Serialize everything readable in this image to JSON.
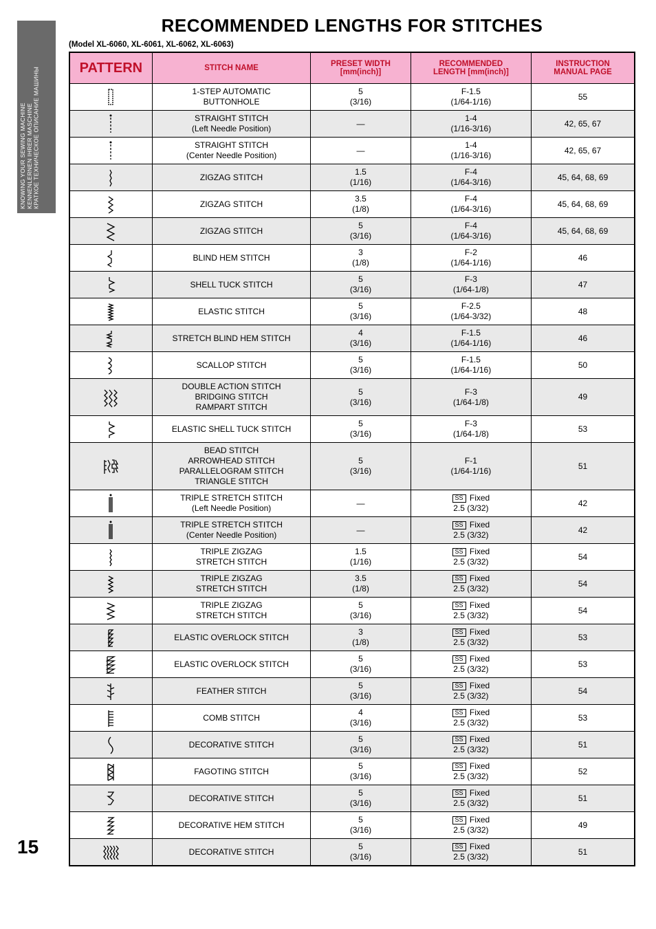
{
  "sideTab": "KNOWING YOUR SEWING MACHINE\nKENNENLERNEN IHRER MASCHINE\nКРАТКОЕ ТЕХНИЧЕСКОЕ ОПИСАНИЕ МАШИНЫ",
  "title": "RECOMMENDED LENGTHS FOR STITCHES",
  "subtitle": "(Model XL-6060, XL-6061, XL-6062, XL-6063)",
  "headers": {
    "pattern": "PATTERN",
    "name": "STITCH NAME",
    "width": "PRESET WIDTH\n[mm(inch)]",
    "length": "RECOMMENDED\nLENGTH [mm(inch)]",
    "page": "INSTRUCTION\nMANUAL PAGE"
  },
  "ssLabel": "SS",
  "fixedLabel": "Fixed",
  "rows": [
    {
      "shaded": false,
      "svg": "buttonhole",
      "name": "1-STEP AUTOMATIC\nBUTTONHOLE",
      "width": "5\n(3/16)",
      "length": "F-1.5\n(1/64-1/16)",
      "page": "55"
    },
    {
      "shaded": true,
      "svg": "straight-left",
      "name": "STRAIGHT STITCH\n(Left Needle Position)",
      "width": "—",
      "length": "1-4\n(1/16-3/16)",
      "page": "42, 65, 67"
    },
    {
      "shaded": false,
      "svg": "straight-center",
      "name": "STRAIGHT STITCH\n(Center Needle Position)",
      "width": "—",
      "length": "1-4\n(1/16-3/16)",
      "page": "42, 65, 67"
    },
    {
      "shaded": true,
      "svg": "zigzag1",
      "name": "ZIGZAG STITCH",
      "width": "1.5\n(1/16)",
      "length": "F-4\n(1/64-3/16)",
      "page": "45, 64, 68, 69"
    },
    {
      "shaded": false,
      "svg": "zigzag2",
      "name": "ZIGZAG STITCH",
      "width": "3.5\n(1/8)",
      "length": "F-4\n(1/64-3/16)",
      "page": "45, 64, 68, 69"
    },
    {
      "shaded": true,
      "svg": "zigzag3",
      "name": "ZIGZAG STITCH",
      "width": "5\n(3/16)",
      "length": "F-4\n(1/64-3/16)",
      "page": "45, 64, 68, 69"
    },
    {
      "shaded": false,
      "svg": "blindhem",
      "name": "BLIND HEM STITCH",
      "width": "3\n(1/8)",
      "length": "F-2\n(1/64-1/16)",
      "page": "46"
    },
    {
      "shaded": true,
      "svg": "shelltuck",
      "name": "SHELL TUCK STITCH",
      "width": "5\n(3/16)",
      "length": "F-3\n(1/64-1/8)",
      "page": "47"
    },
    {
      "shaded": false,
      "svg": "elastic",
      "name": "ELASTIC STITCH",
      "width": "5\n(3/16)",
      "length": "F-2.5\n(1/64-3/32)",
      "page": "48"
    },
    {
      "shaded": true,
      "svg": "stretchblind",
      "name": "STRETCH BLIND HEM STITCH",
      "width": "4\n(3/16)",
      "length": "F-1.5\n(1/64-1/16)",
      "page": "46"
    },
    {
      "shaded": false,
      "svg": "scallop",
      "name": "SCALLOP STITCH",
      "width": "5\n(3/16)",
      "length": "F-1.5\n(1/64-1/16)",
      "page": "50"
    },
    {
      "shaded": true,
      "svg": "double-action",
      "name": "DOUBLE ACTION STITCH\nBRIDGING STITCH\nRAMPART STITCH",
      "width": "5\n(3/16)",
      "length": "F-3\n(1/64-1/8)",
      "page": "49"
    },
    {
      "shaded": false,
      "svg": "elastic-shell",
      "name": "ELASTIC SHELL TUCK STITCH",
      "width": "5\n(3/16)",
      "length": "F-3\n(1/64-1/8)",
      "page": "53"
    },
    {
      "shaded": true,
      "svg": "bead",
      "name": "BEAD STITCH\nARROWHEAD STITCH\nPARALLELOGRAM STITCH\nTRIANGLE STITCH",
      "width": "5\n(3/16)",
      "length": "F-1\n(1/64-1/16)",
      "page": "51"
    },
    {
      "shaded": false,
      "svg": "triple-left",
      "name": "TRIPLE STRETCH STITCH\n(Left Needle Position)",
      "width": "—",
      "length_ss": true,
      "length": "2.5 (3/32)",
      "page": "42"
    },
    {
      "shaded": true,
      "svg": "triple-center",
      "name": "TRIPLE STRETCH STITCH\n(Center Needle Position)",
      "width": "—",
      "length_ss": true,
      "length": "2.5 (3/32)",
      "page": "42"
    },
    {
      "shaded": false,
      "svg": "tz1",
      "name": "TRIPLE ZIGZAG\nSTRETCH STITCH",
      "width": "1.5\n(1/16)",
      "length_ss": true,
      "length": "2.5 (3/32)",
      "page": "54"
    },
    {
      "shaded": true,
      "svg": "tz2",
      "name": "TRIPLE ZIGZAG\nSTRETCH STITCH",
      "width": "3.5\n(1/8)",
      "length_ss": true,
      "length": "2.5 (3/32)",
      "page": "54"
    },
    {
      "shaded": false,
      "svg": "tz3",
      "name": "TRIPLE ZIGZAG\nSTRETCH STITCH",
      "width": "5\n(3/16)",
      "length_ss": true,
      "length": "2.5 (3/32)",
      "page": "54"
    },
    {
      "shaded": true,
      "svg": "overlock1",
      "name": "ELASTIC OVERLOCK STITCH",
      "width": "3\n(1/8)",
      "length_ss": true,
      "length": "2.5 (3/32)",
      "page": "53"
    },
    {
      "shaded": false,
      "svg": "overlock2",
      "name": "ELASTIC OVERLOCK STITCH",
      "width": "5\n(3/16)",
      "length_ss": true,
      "length": "2.5 (3/32)",
      "page": "53"
    },
    {
      "shaded": true,
      "svg": "feather",
      "name": "FEATHER STITCH",
      "width": "5\n(3/16)",
      "length_ss": true,
      "length": "2.5 (3/32)",
      "page": "54"
    },
    {
      "shaded": false,
      "svg": "comb",
      "name": "COMB STITCH",
      "width": "4\n(3/16)",
      "length_ss": true,
      "length": "2.5 (3/32)",
      "page": "53"
    },
    {
      "shaded": true,
      "svg": "decorative1",
      "name": "DECORATIVE STITCH",
      "width": "5\n(3/16)",
      "length_ss": true,
      "length": "2.5 (3/32)",
      "page": "51"
    },
    {
      "shaded": false,
      "svg": "fagoting",
      "name": "FAGOTING STITCH",
      "width": "5\n(3/16)",
      "length_ss": true,
      "length": "2.5 (3/32)",
      "page": "52"
    },
    {
      "shaded": true,
      "svg": "decorative2",
      "name": "DECORATIVE STITCH",
      "width": "5\n(3/16)",
      "length_ss": true,
      "length": "2.5 (3/32)",
      "page": "51"
    },
    {
      "shaded": false,
      "svg": "dec-hem",
      "name": "DECORATIVE HEM STITCH",
      "width": "5\n(3/16)",
      "length_ss": true,
      "length": "2.5 (3/32)",
      "page": "49"
    },
    {
      "shaded": true,
      "svg": "decorative3",
      "name": "DECORATIVE STITCH",
      "width": "5\n(3/16)",
      "length_ss": true,
      "length": "2.5 (3/32)",
      "page": "51"
    }
  ],
  "pageNumber": "15",
  "colors": {
    "headerBg": "#f7b2d1",
    "headerText": "#c0102a",
    "shadedRow": "#e9e9e9",
    "sideTabBg": "#6a6a6a"
  }
}
